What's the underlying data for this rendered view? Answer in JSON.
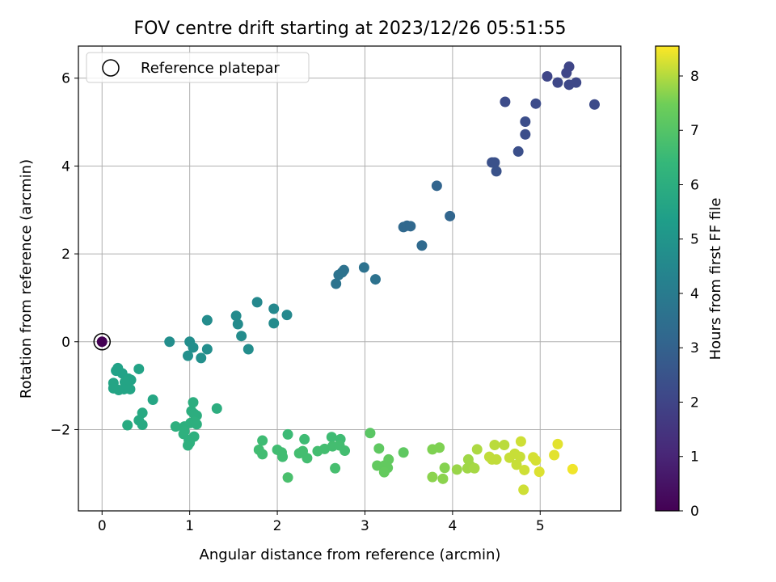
{
  "chart_data": {
    "type": "scatter",
    "title": "FOV centre drift starting at 2023/12/26 05:51:55",
    "xlabel": "Angular distance from reference (arcmin)",
    "ylabel": "Rotation from reference (arcmin)",
    "colorbar_label": "Hours from first FF file",
    "colormap": "viridis",
    "xlim": [
      -0.27,
      5.92
    ],
    "ylim": [
      -3.85,
      6.73
    ],
    "clim": [
      0,
      8.55
    ],
    "xticks": [
      0,
      1,
      2,
      3,
      4,
      5
    ],
    "yticks": [
      -2,
      0,
      2,
      4,
      6
    ],
    "cticks": [
      0,
      1,
      2,
      3,
      4,
      5,
      6,
      7,
      8
    ],
    "grid": true,
    "legend": {
      "position": "top-left",
      "entries": [
        {
          "label": "Reference platepar",
          "marker": "hollow-circle",
          "x": 0,
          "y": 0
        }
      ]
    },
    "reference_point": {
      "x": 0,
      "y": 0,
      "hours": 0
    },
    "series": [
      {
        "points": [
          {
            "x": 5.33,
            "y": 6.26,
            "h": 2.0
          },
          {
            "x": 5.08,
            "y": 6.04,
            "h": 2.05
          },
          {
            "x": 5.3,
            "y": 6.12,
            "h": 2.05
          },
          {
            "x": 5.2,
            "y": 5.9,
            "h": 2.1
          },
          {
            "x": 5.33,
            "y": 5.85,
            "h": 2.1
          },
          {
            "x": 5.41,
            "y": 5.9,
            "h": 2.1
          },
          {
            "x": 5.62,
            "y": 5.4,
            "h": 2.2
          },
          {
            "x": 4.6,
            "y": 5.46,
            "h": 2.25
          },
          {
            "x": 4.95,
            "y": 5.42,
            "h": 2.25
          },
          {
            "x": 4.83,
            "y": 5.01,
            "h": 2.3
          },
          {
            "x": 4.83,
            "y": 4.72,
            "h": 2.3
          },
          {
            "x": 4.75,
            "y": 4.33,
            "h": 2.35
          },
          {
            "x": 4.45,
            "y": 4.08,
            "h": 2.4
          },
          {
            "x": 4.48,
            "y": 4.08,
            "h": 2.4
          },
          {
            "x": 4.5,
            "y": 3.88,
            "h": 2.45
          },
          {
            "x": 3.82,
            "y": 3.55,
            "h": 3.1
          },
          {
            "x": 3.97,
            "y": 2.86,
            "h": 3.15
          },
          {
            "x": 3.44,
            "y": 2.61,
            "h": 3.25
          },
          {
            "x": 3.48,
            "y": 2.64,
            "h": 3.25
          },
          {
            "x": 3.52,
            "y": 2.63,
            "h": 3.25
          },
          {
            "x": 3.65,
            "y": 2.19,
            "h": 3.3
          },
          {
            "x": 2.99,
            "y": 1.69,
            "h": 3.6
          },
          {
            "x": 3.12,
            "y": 1.42,
            "h": 3.6
          },
          {
            "x": 2.74,
            "y": 1.58,
            "h": 3.6
          },
          {
            "x": 2.76,
            "y": 1.63,
            "h": 3.6
          },
          {
            "x": 2.7,
            "y": 1.52,
            "h": 3.65
          },
          {
            "x": 2.67,
            "y": 1.32,
            "h": 3.65
          },
          {
            "x": 1.77,
            "y": 0.9,
            "h": 4.5
          },
          {
            "x": 1.96,
            "y": 0.75,
            "h": 4.5
          },
          {
            "x": 2.11,
            "y": 0.61,
            "h": 4.5
          },
          {
            "x": 1.53,
            "y": 0.59,
            "h": 4.6
          },
          {
            "x": 1.55,
            "y": 0.4,
            "h": 4.6
          },
          {
            "x": 1.96,
            "y": 0.42,
            "h": 4.6
          },
          {
            "x": 1.2,
            "y": 0.49,
            "h": 4.65
          },
          {
            "x": 1.59,
            "y": 0.13,
            "h": 4.65
          },
          {
            "x": 1.67,
            "y": -0.17,
            "h": 4.7
          },
          {
            "x": 0.77,
            "y": 0.0,
            "h": 4.75
          },
          {
            "x": 1.0,
            "y": 0.0,
            "h": 4.75
          },
          {
            "x": 1.04,
            "y": -0.13,
            "h": 4.75
          },
          {
            "x": 1.2,
            "y": -0.17,
            "h": 4.75
          },
          {
            "x": 0.98,
            "y": -0.32,
            "h": 4.8
          },
          {
            "x": 1.13,
            "y": -0.37,
            "h": 4.8
          },
          {
            "x": 0.18,
            "y": -0.6,
            "h": 5.5
          },
          {
            "x": 0.16,
            "y": -0.66,
            "h": 5.5
          },
          {
            "x": 0.23,
            "y": -0.72,
            "h": 5.5
          },
          {
            "x": 0.3,
            "y": -0.84,
            "h": 5.55
          },
          {
            "x": 0.33,
            "y": -0.87,
            "h": 5.55
          },
          {
            "x": 0.42,
            "y": -0.62,
            "h": 5.55
          },
          {
            "x": 0.13,
            "y": -0.94,
            "h": 5.6
          },
          {
            "x": 0.26,
            "y": -0.92,
            "h": 5.6
          },
          {
            "x": 0.13,
            "y": -1.06,
            "h": 5.6
          },
          {
            "x": 0.19,
            "y": -1.1,
            "h": 5.6
          },
          {
            "x": 0.25,
            "y": -1.08,
            "h": 5.6
          },
          {
            "x": 0.32,
            "y": -1.08,
            "h": 5.6
          },
          {
            "x": 0.58,
            "y": -1.32,
            "h": 5.7
          },
          {
            "x": 0.46,
            "y": -1.62,
            "h": 5.8
          },
          {
            "x": 0.42,
            "y": -1.79,
            "h": 5.8
          },
          {
            "x": 0.46,
            "y": -1.89,
            "h": 5.8
          },
          {
            "x": 0.29,
            "y": -1.9,
            "h": 5.85
          },
          {
            "x": 1.04,
            "y": -1.38,
            "h": 6.0
          },
          {
            "x": 1.31,
            "y": -1.52,
            "h": 6.0
          },
          {
            "x": 1.02,
            "y": -1.58,
            "h": 6.0
          },
          {
            "x": 1.05,
            "y": -1.64,
            "h": 6.0
          },
          {
            "x": 1.08,
            "y": -1.68,
            "h": 6.0
          },
          {
            "x": 0.84,
            "y": -1.93,
            "h": 6.05
          },
          {
            "x": 0.94,
            "y": -1.93,
            "h": 6.05
          },
          {
            "x": 1.01,
            "y": -1.85,
            "h": 6.05
          },
          {
            "x": 1.06,
            "y": -1.82,
            "h": 6.05
          },
          {
            "x": 1.08,
            "y": -1.88,
            "h": 6.05
          },
          {
            "x": 0.94,
            "y": -2.04,
            "h": 6.1
          },
          {
            "x": 0.93,
            "y": -2.1,
            "h": 6.1
          },
          {
            "x": 1.05,
            "y": -2.16,
            "h": 6.1
          },
          {
            "x": 0.99,
            "y": -2.24,
            "h": 6.1
          },
          {
            "x": 1.0,
            "y": -2.3,
            "h": 6.1
          },
          {
            "x": 0.98,
            "y": -2.36,
            "h": 6.1
          },
          {
            "x": 2.12,
            "y": -2.11,
            "h": 6.55
          },
          {
            "x": 1.83,
            "y": -2.25,
            "h": 6.6
          },
          {
            "x": 2.31,
            "y": -2.22,
            "h": 6.6
          },
          {
            "x": 2.62,
            "y": -2.17,
            "h": 6.6
          },
          {
            "x": 2.72,
            "y": -2.22,
            "h": 6.6
          },
          {
            "x": 1.79,
            "y": -2.46,
            "h": 6.65
          },
          {
            "x": 1.83,
            "y": -2.56,
            "h": 6.65
          },
          {
            "x": 2.0,
            "y": -2.46,
            "h": 6.65
          },
          {
            "x": 2.05,
            "y": -2.52,
            "h": 6.65
          },
          {
            "x": 2.06,
            "y": -2.62,
            "h": 6.65
          },
          {
            "x": 2.25,
            "y": -2.54,
            "h": 6.7
          },
          {
            "x": 2.29,
            "y": -2.49,
            "h": 6.7
          },
          {
            "x": 2.34,
            "y": -2.65,
            "h": 6.7
          },
          {
            "x": 2.46,
            "y": -2.49,
            "h": 6.7
          },
          {
            "x": 2.54,
            "y": -2.44,
            "h": 6.7
          },
          {
            "x": 2.63,
            "y": -2.38,
            "h": 6.7
          },
          {
            "x": 2.71,
            "y": -2.36,
            "h": 6.7
          },
          {
            "x": 2.77,
            "y": -2.48,
            "h": 6.7
          },
          {
            "x": 2.66,
            "y": -2.88,
            "h": 6.75
          },
          {
            "x": 2.12,
            "y": -3.09,
            "h": 6.8
          },
          {
            "x": 3.06,
            "y": -2.08,
            "h": 7.1
          },
          {
            "x": 3.16,
            "y": -2.43,
            "h": 7.2
          },
          {
            "x": 3.44,
            "y": -2.52,
            "h": 7.2
          },
          {
            "x": 3.27,
            "y": -2.68,
            "h": 7.25
          },
          {
            "x": 3.14,
            "y": -2.82,
            "h": 7.25
          },
          {
            "x": 3.22,
            "y": -2.82,
            "h": 7.25
          },
          {
            "x": 3.26,
            "y": -2.87,
            "h": 7.25
          },
          {
            "x": 3.22,
            "y": -2.97,
            "h": 7.3
          },
          {
            "x": 3.85,
            "y": -2.41,
            "h": 7.6
          },
          {
            "x": 3.77,
            "y": -2.45,
            "h": 7.6
          },
          {
            "x": 3.91,
            "y": -2.87,
            "h": 7.65
          },
          {
            "x": 3.77,
            "y": -3.08,
            "h": 7.7
          },
          {
            "x": 3.89,
            "y": -3.12,
            "h": 7.7
          },
          {
            "x": 4.05,
            "y": -2.91,
            "h": 7.8
          },
          {
            "x": 4.18,
            "y": -2.68,
            "h": 7.85
          },
          {
            "x": 4.2,
            "y": -2.82,
            "h": 7.85
          },
          {
            "x": 4.17,
            "y": -2.88,
            "h": 7.85
          },
          {
            "x": 4.25,
            "y": -2.88,
            "h": 7.9
          },
          {
            "x": 4.28,
            "y": -2.45,
            "h": 7.95
          },
          {
            "x": 4.48,
            "y": -2.35,
            "h": 8.05
          },
          {
            "x": 4.59,
            "y": -2.35,
            "h": 8.05
          },
          {
            "x": 4.42,
            "y": -2.62,
            "h": 8.1
          },
          {
            "x": 4.45,
            "y": -2.68,
            "h": 8.1
          },
          {
            "x": 4.5,
            "y": -2.68,
            "h": 8.1
          },
          {
            "x": 4.65,
            "y": -2.64,
            "h": 8.15
          },
          {
            "x": 4.71,
            "y": -2.55,
            "h": 8.15
          },
          {
            "x": 4.77,
            "y": -2.62,
            "h": 8.15
          },
          {
            "x": 4.73,
            "y": -2.8,
            "h": 8.15
          },
          {
            "x": 4.78,
            "y": -2.27,
            "h": 8.2
          },
          {
            "x": 4.82,
            "y": -2.92,
            "h": 8.2
          },
          {
            "x": 4.81,
            "y": -3.37,
            "h": 8.2
          },
          {
            "x": 4.92,
            "y": -2.63,
            "h": 8.25
          },
          {
            "x": 4.95,
            "y": -2.7,
            "h": 8.25
          },
          {
            "x": 4.99,
            "y": -2.96,
            "h": 8.3
          },
          {
            "x": 5.16,
            "y": -2.58,
            "h": 8.35
          },
          {
            "x": 5.2,
            "y": -2.33,
            "h": 8.35
          },
          {
            "x": 5.37,
            "y": -2.9,
            "h": 8.45
          }
        ]
      }
    ]
  }
}
